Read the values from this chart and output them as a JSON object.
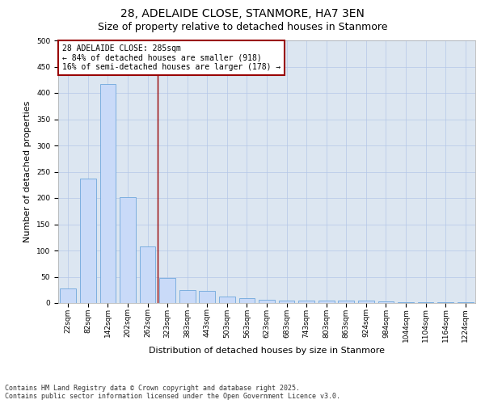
{
  "title_line1": "28, ADELAIDE CLOSE, STANMORE, HA7 3EN",
  "title_line2": "Size of property relative to detached houses in Stanmore",
  "xlabel": "Distribution of detached houses by size in Stanmore",
  "ylabel": "Number of detached properties",
  "categories": [
    "22sqm",
    "82sqm",
    "142sqm",
    "202sqm",
    "262sqm",
    "323sqm",
    "383sqm",
    "443sqm",
    "503sqm",
    "563sqm",
    "623sqm",
    "683sqm",
    "743sqm",
    "803sqm",
    "863sqm",
    "924sqm",
    "984sqm",
    "1044sqm",
    "1104sqm",
    "1164sqm",
    "1224sqm"
  ],
  "values": [
    27,
    237,
    417,
    201,
    107,
    48,
    25,
    23,
    12,
    10,
    6,
    5,
    5,
    5,
    5,
    5,
    3,
    1,
    1,
    1,
    1
  ],
  "bar_color": "#c9daf8",
  "bar_edge_color": "#6fa8dc",
  "vline_x_index": 4.5,
  "vline_color": "#990000",
  "annotation_line1": "28 ADELAIDE CLOSE: 285sqm",
  "annotation_line2": "← 84% of detached houses are smaller (918)",
  "annotation_line3": "16% of semi-detached houses are larger (178) →",
  "annotation_box_color": "#990000",
  "ylim": [
    0,
    500
  ],
  "yticks": [
    0,
    50,
    100,
    150,
    200,
    250,
    300,
    350,
    400,
    450,
    500
  ],
  "grid_color": "#b4c7e7",
  "background_color": "#dce6f1",
  "footer_line1": "Contains HM Land Registry data © Crown copyright and database right 2025.",
  "footer_line2": "Contains public sector information licensed under the Open Government Licence v3.0.",
  "title_fontsize": 10,
  "subtitle_fontsize": 9,
  "tick_fontsize": 6.5,
  "label_fontsize": 8,
  "annotation_fontsize": 7,
  "footer_fontsize": 6
}
